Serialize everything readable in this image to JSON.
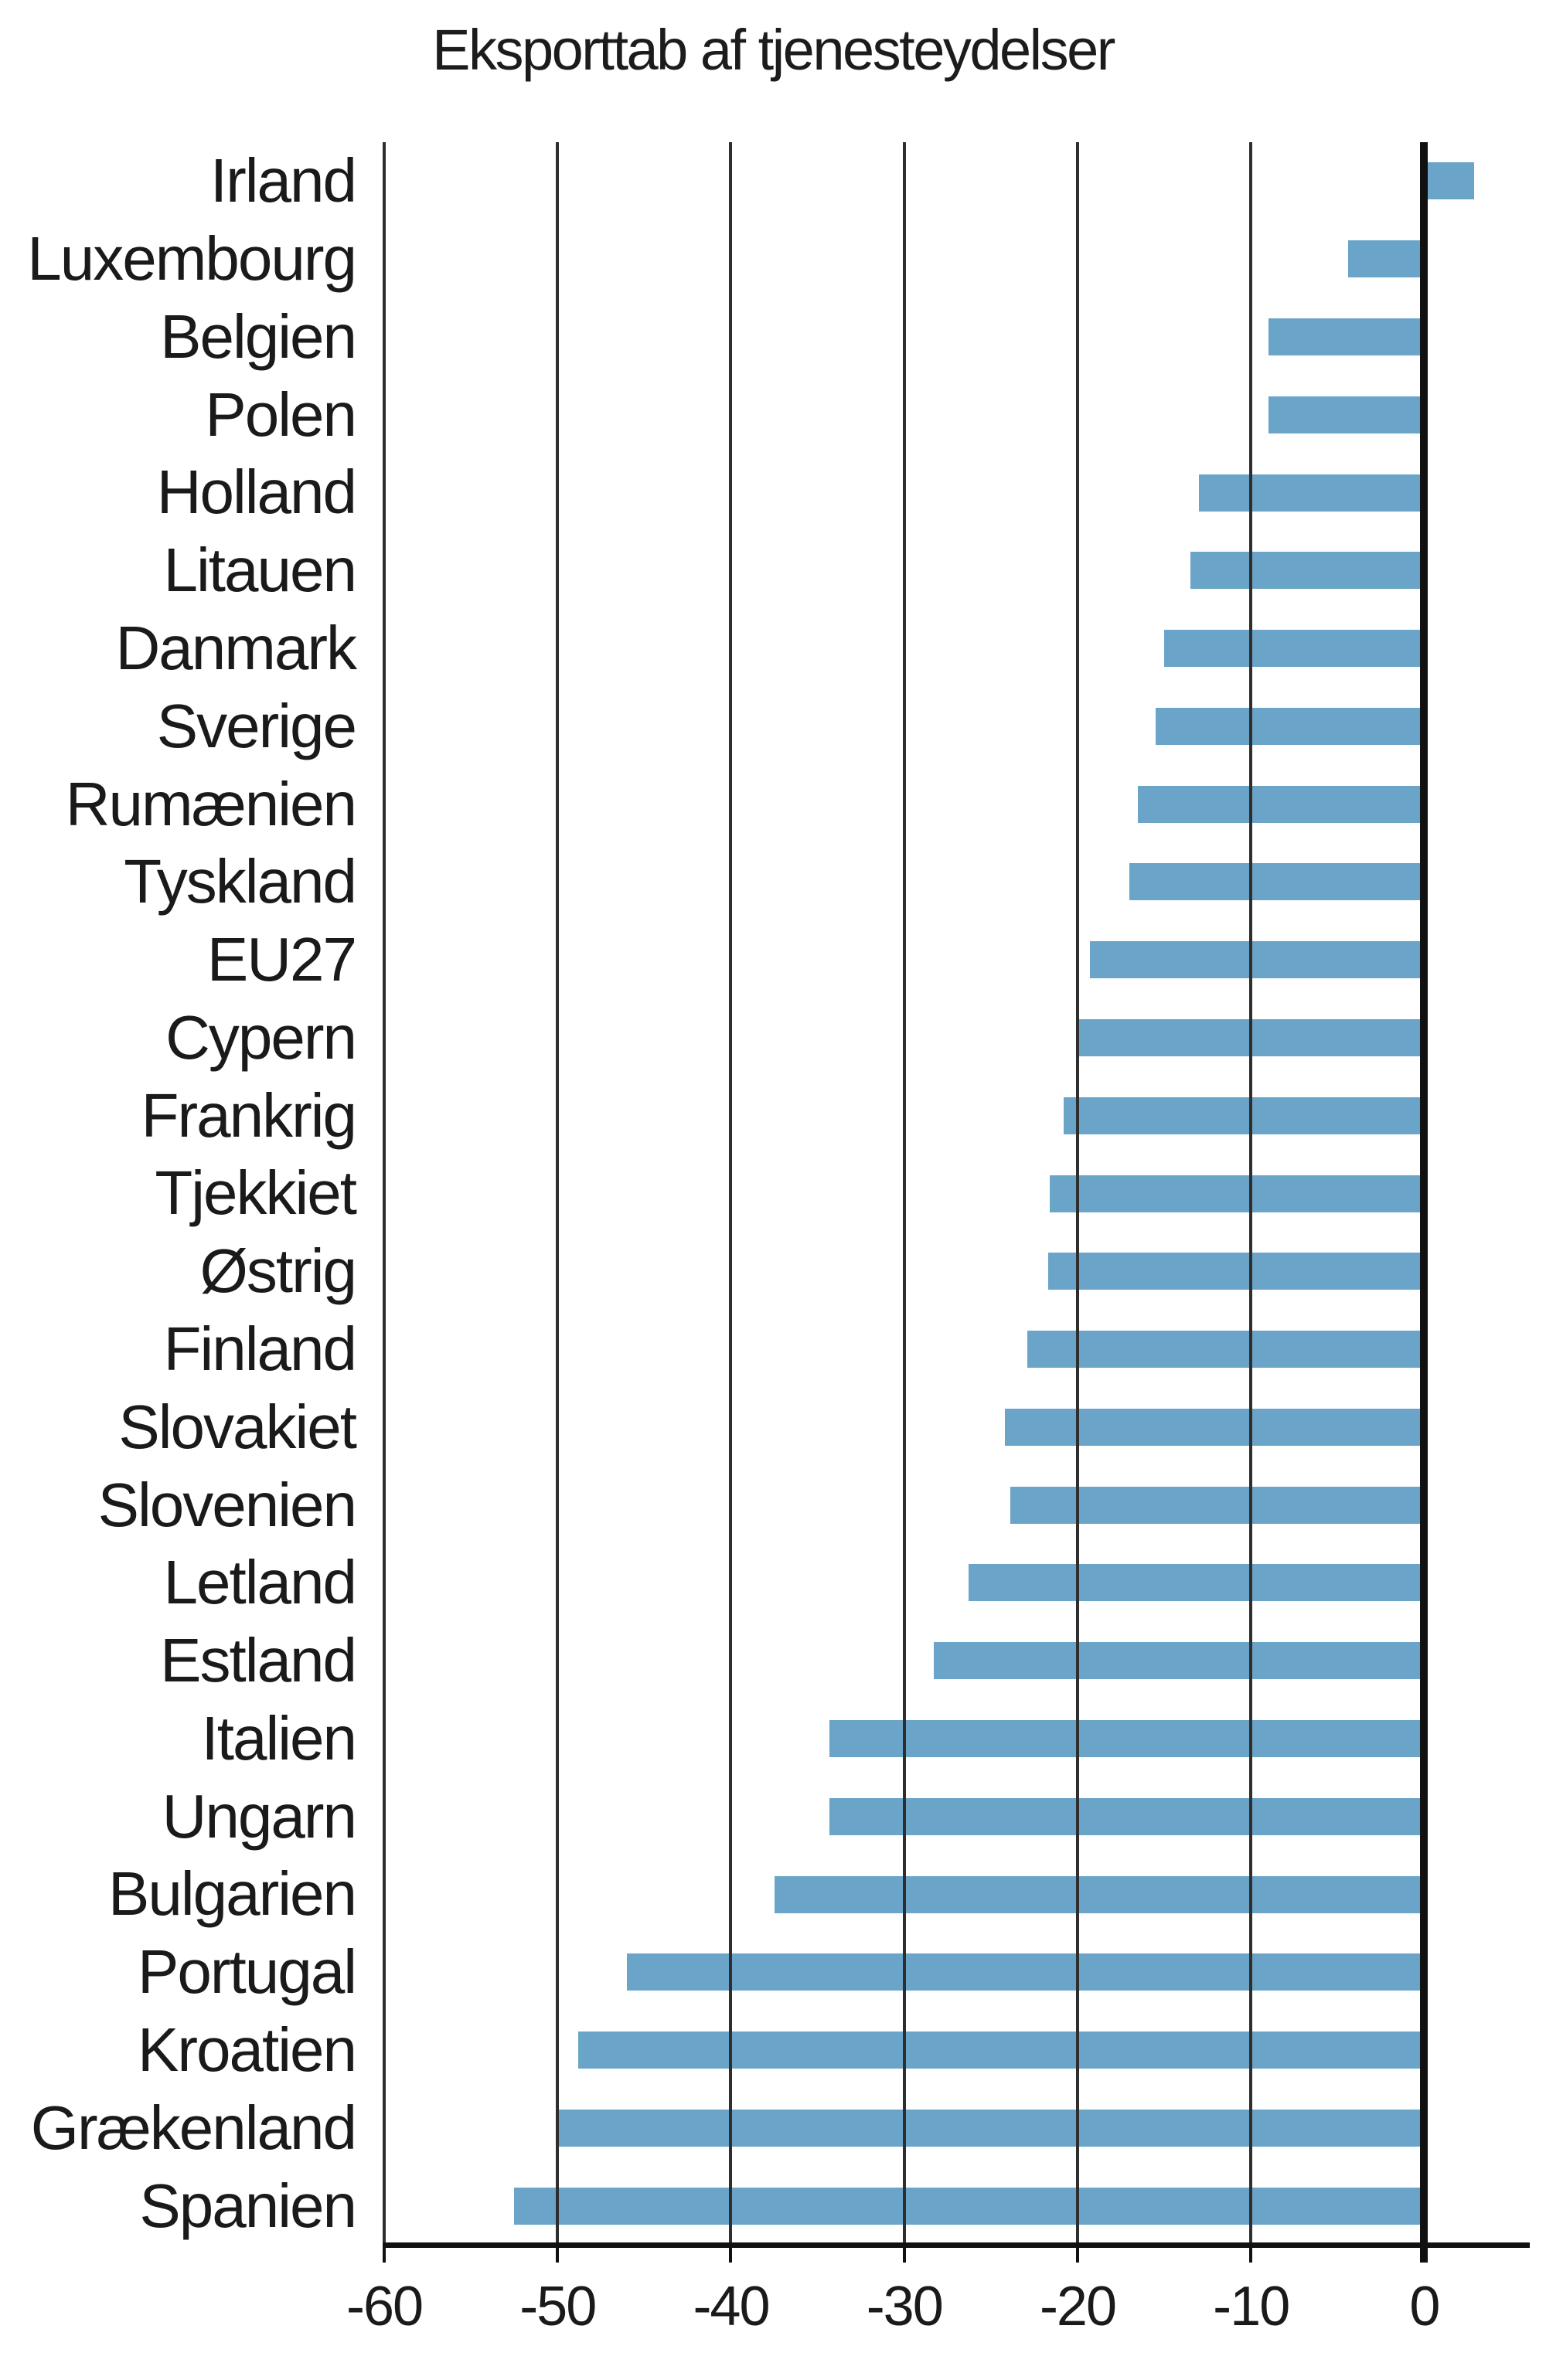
{
  "title": "Eksporttab af tjenesteydelser",
  "chart_data": {
    "type": "bar",
    "orientation": "horizontal",
    "title": "Eksporttab af tjenesteydelser",
    "categories": [
      "Irland",
      "Luxembourg",
      "Belgien",
      "Polen",
      "Holland",
      "Litauen",
      "Danmark",
      "Sverige",
      "Rumænien",
      "Tyskland",
      "EU27",
      "Cypern",
      "Frankrig",
      "Tjekkiet",
      "Østrig",
      "Finland",
      "Slovakiet",
      "Slovenien",
      "Letland",
      "Estland",
      "Italien",
      "Ungarn",
      "Bulgarien",
      "Portugal",
      "Kroatien",
      "Grækenland",
      "Spanien"
    ],
    "values": [
      2.9,
      -4.4,
      -9.0,
      -9.0,
      -13.0,
      -13.5,
      -15.0,
      -15.5,
      -16.5,
      -17.0,
      -19.3,
      -20.0,
      -20.8,
      -21.6,
      -21.7,
      -22.9,
      -24.2,
      -23.9,
      -26.3,
      -28.3,
      -34.3,
      -34.3,
      -37.5,
      -46.0,
      -48.8,
      -50.0,
      -52.5
    ],
    "xlabel": "",
    "ylabel": "",
    "xlim": [
      -60,
      6
    ],
    "xticks": [
      -60,
      -50,
      -40,
      -30,
      -20,
      -10,
      0
    ],
    "grid": true,
    "legend": null,
    "bar_color": "#6aa4c8",
    "gridline_color": "#2e2e2e",
    "zero_line_color": "#111111",
    "text_color": "#1a1a1a",
    "background_color": "#ffffff"
  }
}
